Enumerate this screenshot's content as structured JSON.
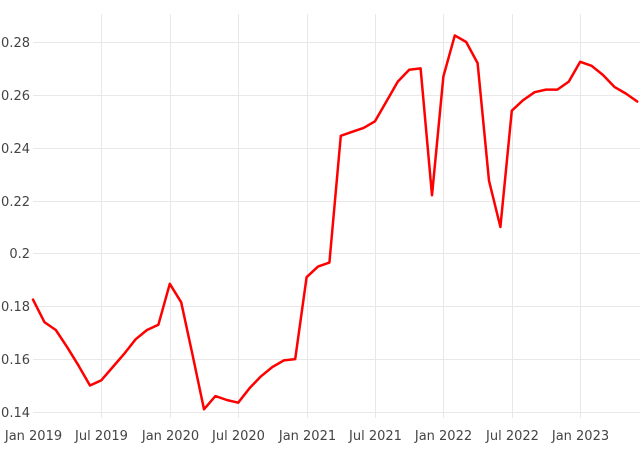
{
  "chart_data": {
    "type": "line",
    "title": "",
    "xlabel": "",
    "ylabel": "",
    "grid": true,
    "legend": false,
    "plot_background": "#ffffff",
    "gridline_color": "#e8e8e8",
    "tick_label_color": "#444444",
    "line_color": "#ff0000",
    "line_width": 2.5,
    "x": [
      "Jan 2019",
      "Feb 2019",
      "Mar 2019",
      "Apr 2019",
      "May 2019",
      "Jun 2019",
      "Jul 2019",
      "Aug 2019",
      "Sep 2019",
      "Oct 2019",
      "Nov 2019",
      "Dec 2019",
      "Jan 2020",
      "Feb 2020",
      "Mar 2020",
      "Apr 2020",
      "May 2020",
      "Jun 2020",
      "Jul 2020",
      "Aug 2020",
      "Sep 2020",
      "Oct 2020",
      "Nov 2020",
      "Dec 2020",
      "Jan 2021",
      "Feb 2021",
      "Mar 2021",
      "Apr 2021",
      "May 2021",
      "Jun 2021",
      "Jul 2021",
      "Aug 2021",
      "Sep 2021",
      "Oct 2021",
      "Nov 2021",
      "Dec 2021",
      "Jan 2022",
      "Feb 2022",
      "Mar 2022",
      "Apr 2022",
      "May 2022",
      "Jun 2022",
      "Jul 2022",
      "Aug 2022",
      "Sep 2022",
      "Oct 2022",
      "Nov 2022",
      "Dec 2022",
      "Jan 2023",
      "Feb 2023",
      "Mar 2023",
      "Apr 2023",
      "May 2023",
      "Jun 2023"
    ],
    "values": [
      0.1825,
      0.174,
      0.171,
      0.1645,
      0.1575,
      0.15,
      0.152,
      0.157,
      0.162,
      0.1675,
      0.171,
      0.173,
      0.1885,
      0.1815,
      0.1615,
      0.141,
      0.146,
      0.1445,
      0.1435,
      0.149,
      0.1535,
      0.157,
      0.1595,
      0.16,
      0.191,
      0.195,
      0.1965,
      0.2445,
      0.246,
      0.2475,
      0.25,
      0.2575,
      0.265,
      0.2695,
      0.27,
      0.222,
      0.267,
      0.2825,
      0.28,
      0.272,
      0.2275,
      0.21,
      0.254,
      0.258,
      0.261,
      0.262,
      0.262,
      0.265,
      0.2725,
      0.271,
      0.2675,
      0.263,
      0.2605,
      0.2575
    ],
    "x_tick_labels": [
      "Jan 2019",
      "Jul 2019",
      "Jan 2020",
      "Jul 2020",
      "Jan 2021",
      "Jul 2021",
      "Jan 2022",
      "Jul 2022",
      "Jan 2023"
    ],
    "x_tick_month_indices": [
      0,
      6,
      12,
      18,
      24,
      30,
      36,
      42,
      48
    ],
    "y_tick_labels": [
      "0.14",
      "0.16",
      "0.18",
      "0.2",
      "0.22",
      "0.24",
      "0.26",
      "0.28"
    ],
    "y_ticks": [
      0.14,
      0.16,
      0.18,
      0.2,
      0.22,
      0.24,
      0.26,
      0.28
    ],
    "ylim": [
      0.1377,
      0.2906
    ]
  }
}
